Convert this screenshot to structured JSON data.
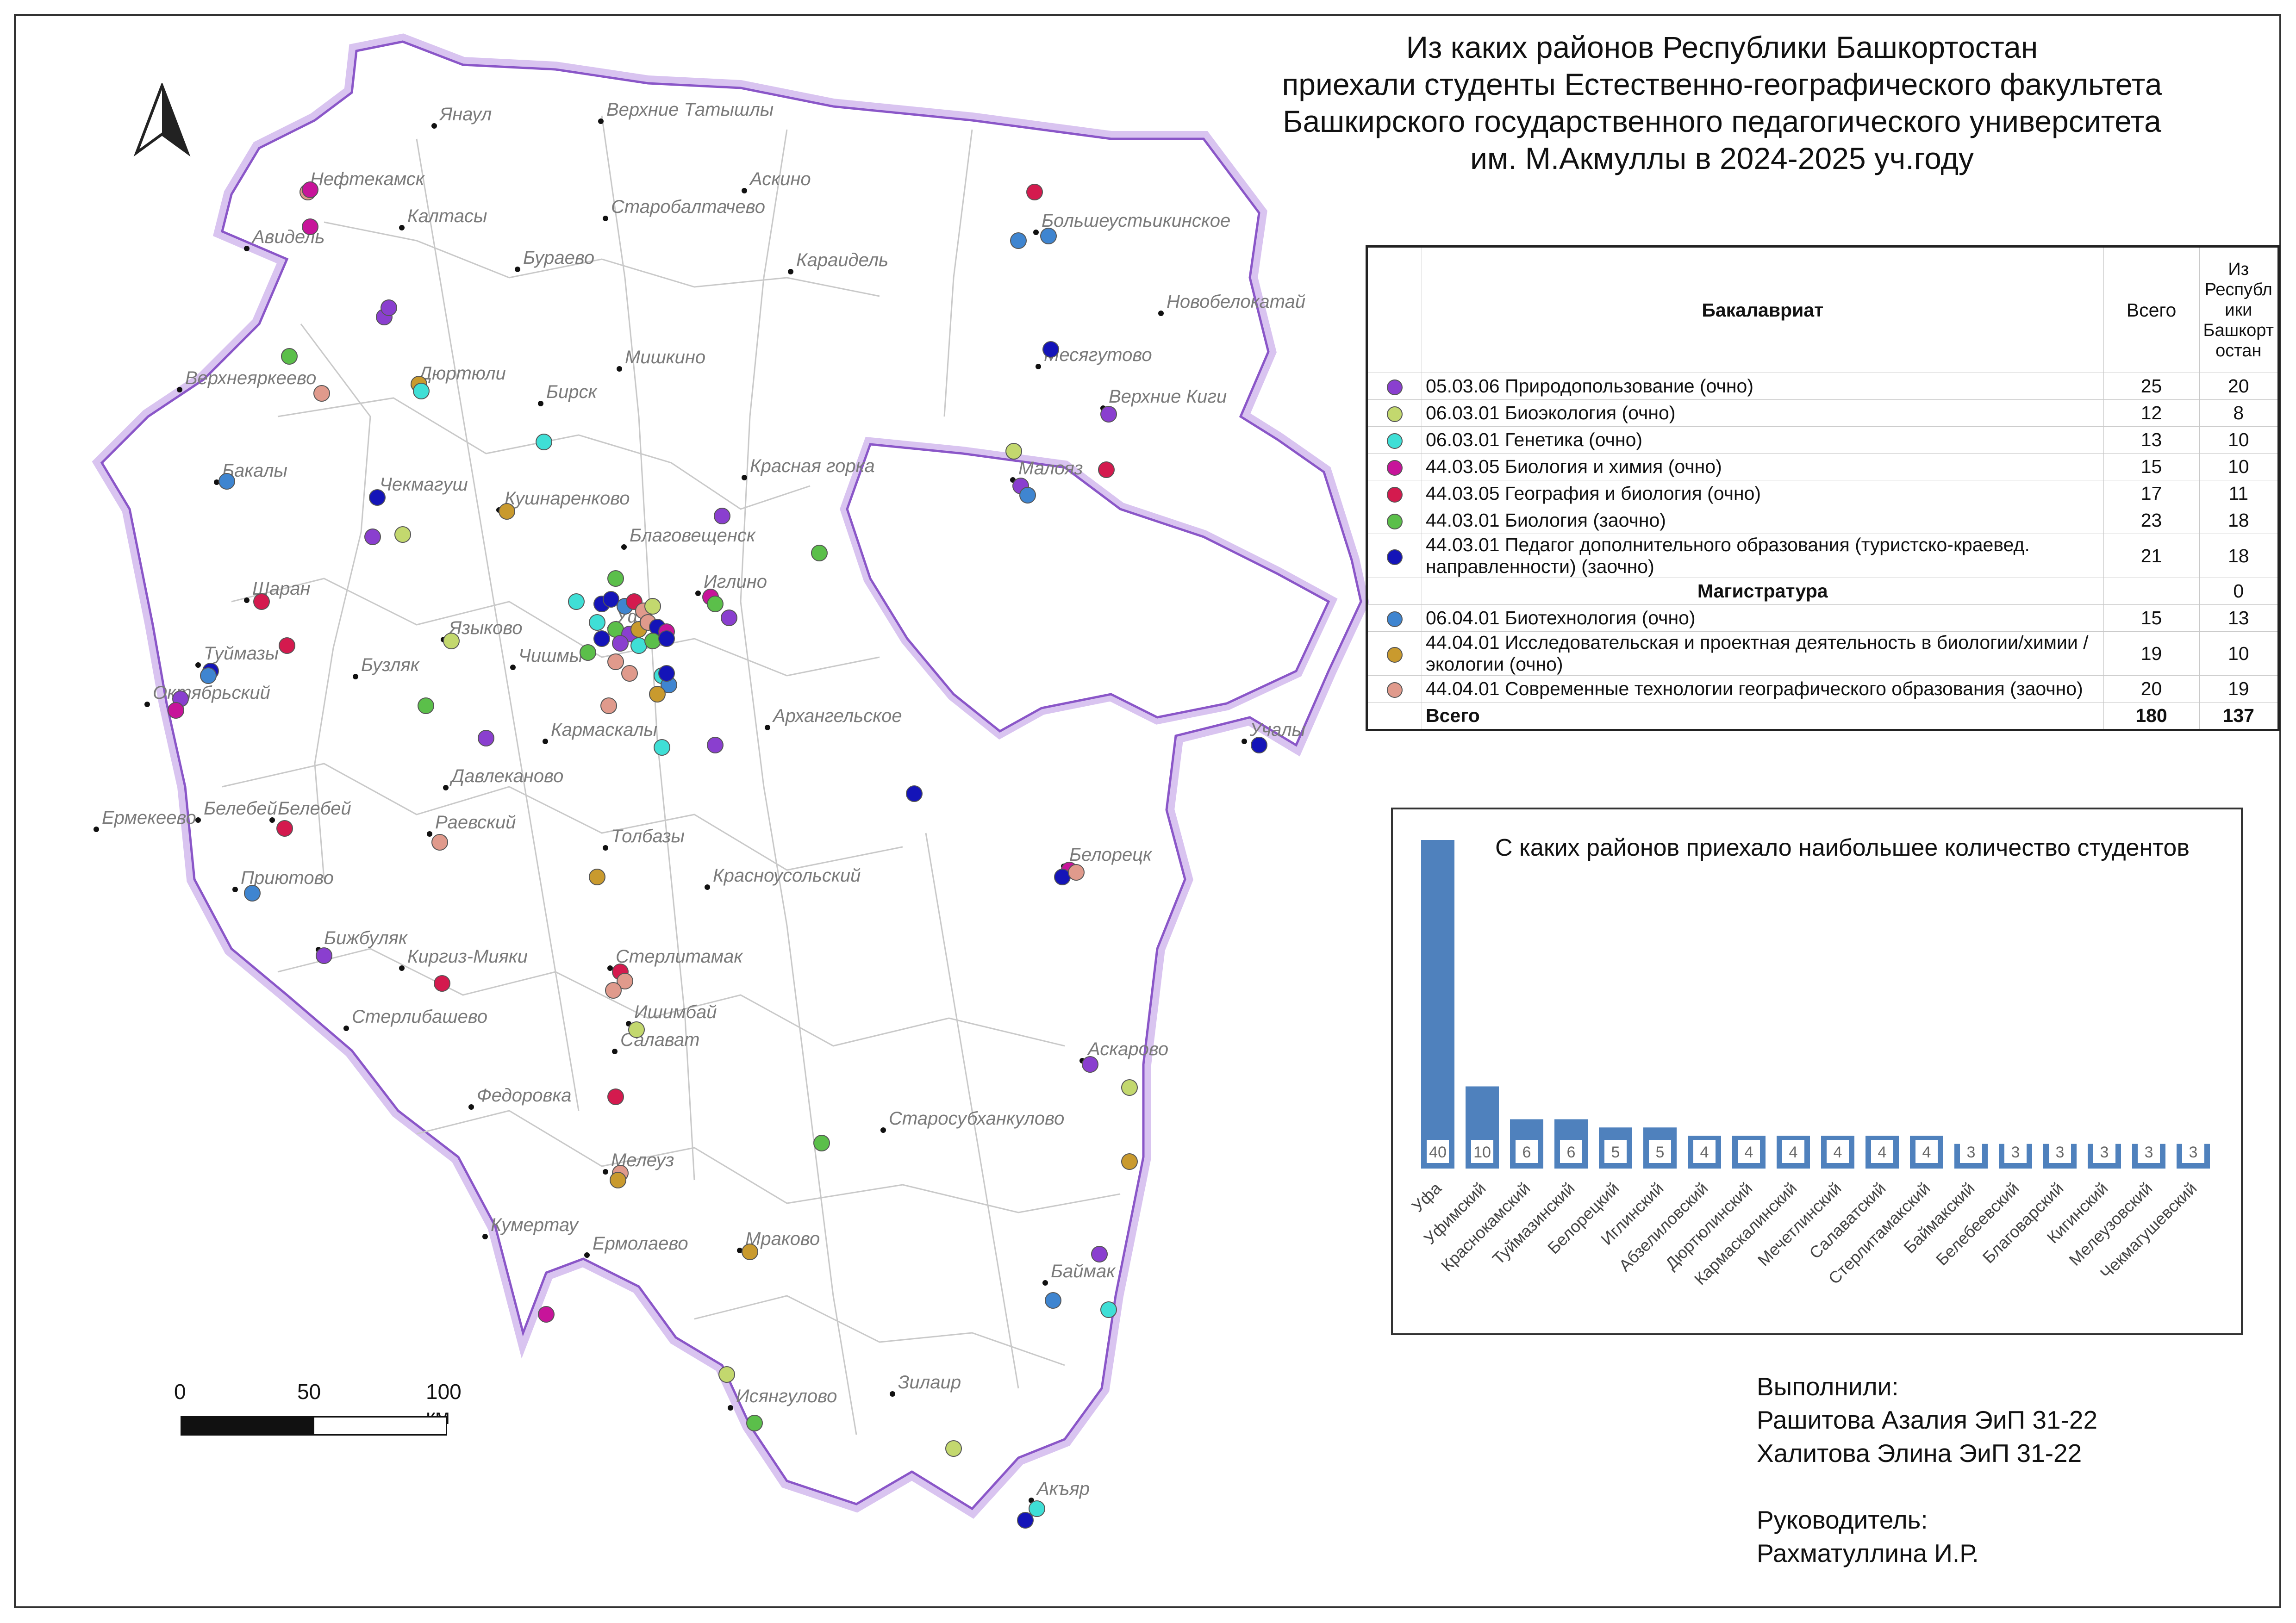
{
  "title_lines": [
    "Из каких районов Республики Башкортостан",
    "приехали студенты Естественно-географического факультета",
    "Башкирского государственного педагогического университета",
    "им. М.Акмуллы в 2024-2025 уч.году"
  ],
  "table": {
    "header_program": "Бакалавриат",
    "header_total": "Всего",
    "header_republic": "Из Республ ики Башкорт остан",
    "rows": [
      {
        "color": "#8a3fcf",
        "label": "05.03.06 Природопользование (очно)",
        "total": "25",
        "republic": "20"
      },
      {
        "color": "#c3d86e",
        "label": "06.03.01 Биоэкология (очно)",
        "total": "12",
        "republic": "8"
      },
      {
        "color": "#3fdfd6",
        "label": "06.03.01 Генетика (очно)",
        "total": "13",
        "republic": "10"
      },
      {
        "color": "#c7149a",
        "label": "44.03.05 Биология и химия (очно)",
        "total": "15",
        "republic": "10"
      },
      {
        "color": "#d41a4e",
        "label": "44.03.05 География и биология (очно)",
        "total": "17",
        "republic": "11"
      },
      {
        "color": "#5bbf4a",
        "label": "44.03.01 Биология (заочно)",
        "total": "23",
        "republic": "18"
      },
      {
        "color": "#1414b8",
        "label": "44.03.01 Педагог дополнительного образования (туристско-краевед. направленности) (заочно)",
        "total": "21",
        "republic": "18"
      }
    ],
    "magistracy_label": "Магистратура",
    "magistracy_value": "0",
    "rows_master": [
      {
        "color": "#3f85d0",
        "label": "06.04.01 Биотехнология (очно)",
        "total": "15",
        "republic": "13"
      },
      {
        "color": "#c99a2e",
        "label": "44.04.01 Исследовательская и проектная деятельность в биологии/химии /экологии (очно)",
        "total": "19",
        "republic": "10"
      },
      {
        "color": "#e09a8c",
        "label": "44.04.01 Современные технологии географического образования (заочно)",
        "total": "20",
        "republic": "19"
      }
    ],
    "total_label": "Всего",
    "total_all": "180",
    "total_republic": "137"
  },
  "chart_data": {
    "type": "bar",
    "title": "С каких районов приехало наибольшее количество студентов",
    "categories": [
      "Уфа",
      "Уфимский",
      "Краснокамский",
      "Туймазинский",
      "Белорецкий",
      "Иглинский",
      "Абзелиловский",
      "Дюртюлинский",
      "Кармаскалинский",
      "Мечетлинский",
      "Салаватский",
      "Стерлитамакский",
      "Баймакский",
      "Белебеевский",
      "Благоварский",
      "Кигинский",
      "Мелеузовский",
      "Чекмагушевский"
    ],
    "values": [
      40,
      10,
      6,
      6,
      5,
      5,
      4,
      4,
      4,
      4,
      4,
      4,
      3,
      3,
      3,
      3,
      3,
      3
    ],
    "ylim": [
      0,
      40
    ],
    "bar_color": "#4f81bd",
    "grid": false
  },
  "credits": [
    "Выполнили:",
    "Рашитова Азалия ЭиП 31-22",
    "Халитова Элина ЭиП 31-22",
    "",
    "Руководитель:",
    "Рахматуллина И.Р."
  ],
  "scale_labels": [
    "0",
    "50",
    "100 км"
  ],
  "cities": [
    "Янаул",
    "Верхние Татышлы",
    "Нефтекамск",
    "Аскино",
    "Калтасы",
    "Старобалтачево",
    "Большеустьикинское",
    "Авидель",
    "Бураево",
    "Караидель",
    "Новобелокатай",
    "Мишкино",
    "Дюртюли",
    "Месягутово",
    "Верхнеяркеево",
    "Бирск",
    "Верхние Киги",
    "Бакалы",
    "Чекмагуш",
    "Красная горка",
    "Малояз",
    "Кушнаренково",
    "Благовещенск",
    "Шаран",
    "Иглино",
    "Языково",
    "Уфа",
    "Туймазы",
    "Бузляк",
    "Чишмы",
    "Октябрьский",
    "Кармаскалы",
    "Архангельское",
    "Учалы",
    "Давлеканово",
    "Ермекеево",
    "Белебей",
    "Белебей",
    "Раевский",
    "Толбазы",
    "Красноусольский",
    "Белорецк",
    "Приютово",
    "Бижбуляк",
    "Киргиз-Мияки",
    "Стерлитамак",
    "Ишимбай",
    "Стерлибашево",
    "Салават",
    "Аскарово",
    "Федоровка",
    "Старосубханкулово",
    "Мелеуз",
    "Кумертау",
    "Ермолаево",
    "Мраково",
    "Баймак",
    "Зилаир",
    "Исянгулово",
    "Акъяр"
  ]
}
